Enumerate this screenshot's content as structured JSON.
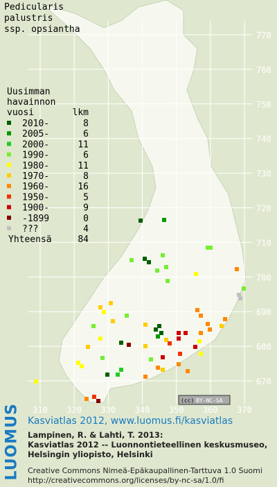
{
  "title": [
    "Pedicularis",
    "palustris",
    "ssp. opsiantha"
  ],
  "legend": {
    "heading": [
      "Uusimman",
      "havainnon",
      "vuosi"
    ],
    "count_header": "lkm",
    "rows": [
      {
        "label": "2010-",
        "count": 8,
        "color": "#005f00"
      },
      {
        "label": "2005-",
        "count": 6,
        "color": "#009900"
      },
      {
        "label": "2000-",
        "count": 11,
        "color": "#22cc22"
      },
      {
        "label": "1990-",
        "count": 6,
        "color": "#77ee33"
      },
      {
        "label": "1980-",
        "count": 11,
        "color": "#ffff00"
      },
      {
        "label": "1970-",
        "count": 8,
        "color": "#ffcc00"
      },
      {
        "label": "1960-",
        "count": 16,
        "color": "#ff8800"
      },
      {
        "label": "1950-",
        "count": 5,
        "color": "#ee3300"
      },
      {
        "label": "1900-",
        "count": 9,
        "color": "#cc0000"
      },
      {
        "label": "-1899",
        "count": 0,
        "color": "#880000"
      },
      {
        "label": "???",
        "count": 4,
        "color": "#c0c0c0"
      }
    ],
    "total": {
      "label": "Yhteensä",
      "count": 84
    }
  },
  "grid": {
    "northing": [
      770,
      760,
      750,
      740,
      730,
      720,
      710,
      700,
      690,
      680,
      670
    ],
    "easting": [
      310,
      320,
      330,
      340,
      350,
      360,
      370
    ]
  },
  "license_badge": "BY-NC-SA",
  "footer": {
    "logo": "LUOMUS",
    "link": "Kasviatlas 2012, www.luomus.fi/kasviatlas",
    "citation": [
      "Lampinen, R. & Lahti, T. 2013:",
      "Kasviatlas 2012 -- Luonnontieteellinen keskusmuseo,",
      "Helsingin yliopisto, Helsinki"
    ],
    "license": [
      "Creative Commons Nimeä-Epäkaupallinen-Tarttuva 1.0 Suomi",
      "http://creativecommons.org/licenses/by-nc-sa/1.0/fi"
    ]
  }
}
